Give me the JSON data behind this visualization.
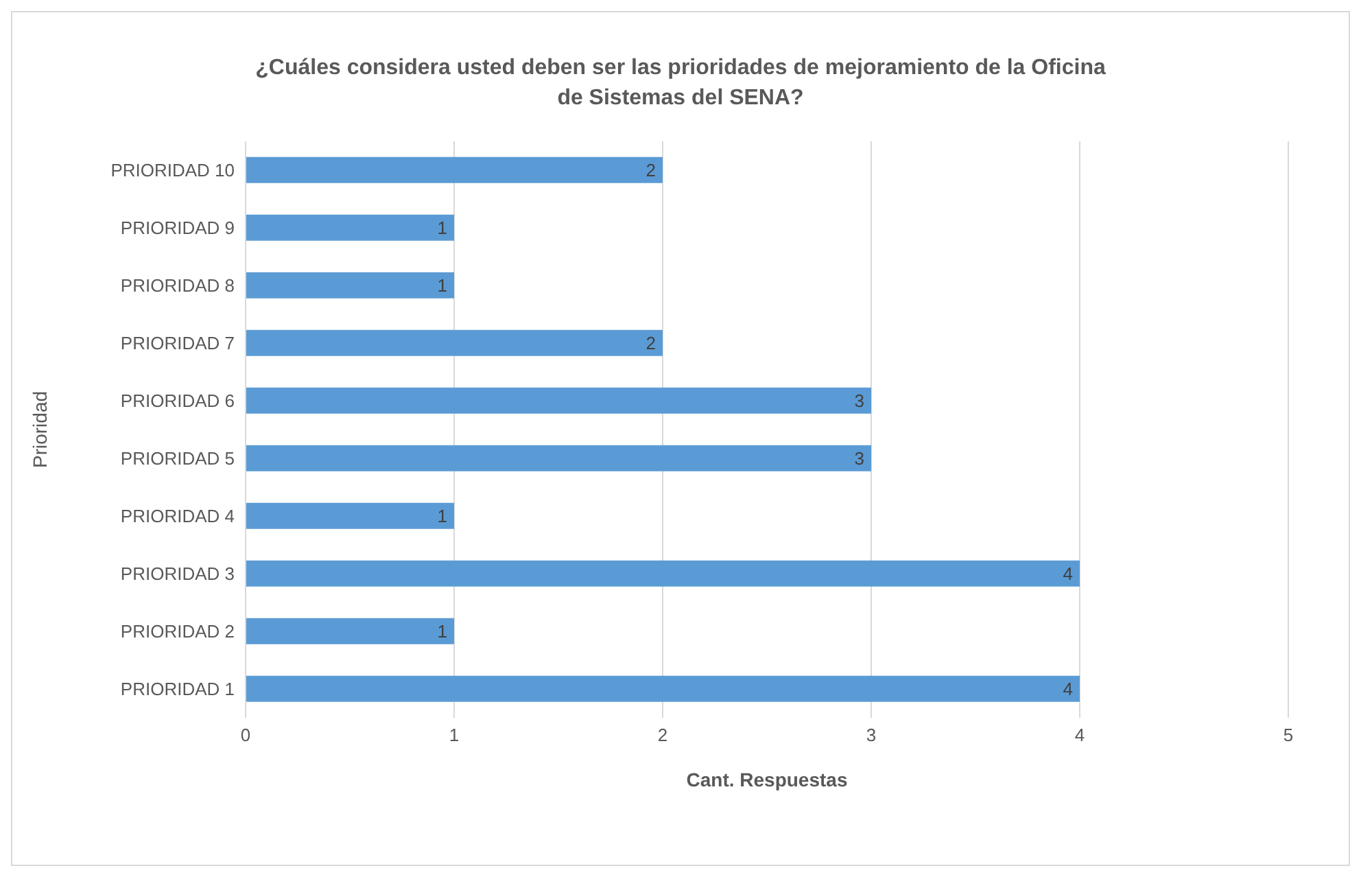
{
  "chart_data": {
    "type": "bar",
    "orientation": "horizontal",
    "title": "¿Cuáles considera usted deben ser las prioridades de mejoramiento de la Oficina de Sistemas del SENA?",
    "xlabel": "Cant. Respuestas",
    "ylabel": "Prioridad",
    "categories": [
      "PRIORIDAD 10",
      "PRIORIDAD 9",
      "PRIORIDAD 8",
      "PRIORIDAD 7",
      "PRIORIDAD 6",
      "PRIORIDAD 5",
      "PRIORIDAD 4",
      "PRIORIDAD 3",
      "PRIORIDAD 2",
      "PRIORIDAD 1"
    ],
    "values": [
      2,
      1,
      1,
      2,
      3,
      3,
      1,
      4,
      1,
      4
    ],
    "color": "#5b9bd5",
    "data_labels": true,
    "xlim": [
      0,
      5
    ],
    "xticks": [
      0,
      1,
      2,
      3,
      4,
      5
    ],
    "grid": "x"
  }
}
